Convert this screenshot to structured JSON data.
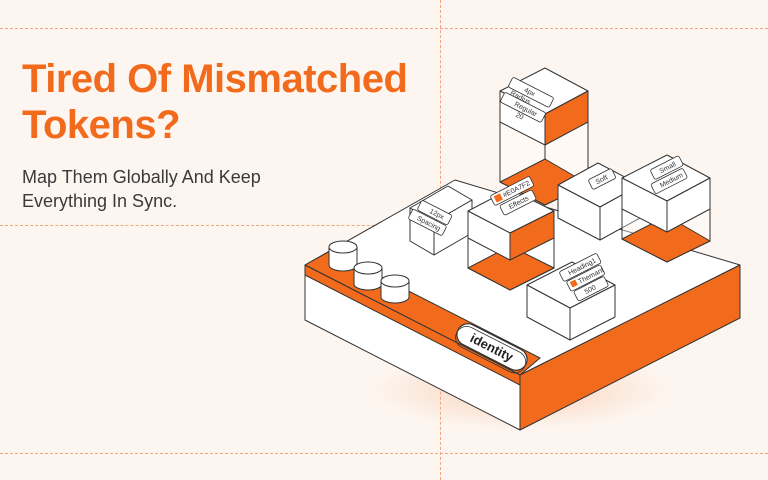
{
  "headline": {
    "line1": "Tired Of Mismatched",
    "line2": "Tokens?"
  },
  "subhead": {
    "line1": "Map Them Globally And Keep",
    "line2": "Everything In Sync."
  },
  "platform": {
    "label": "identity"
  },
  "tokens": {
    "radius": {
      "line1": "4px",
      "line2": "Radius",
      "line3": "Regular",
      "line4": "20"
    },
    "soft": {
      "line1": "Soft"
    },
    "size": {
      "line1": "Small",
      "line2": "Medium"
    },
    "spacing": {
      "line1": "12px",
      "line2": "Spacing"
    },
    "effects": {
      "line1": "#E0A7F2",
      "line2": "Effects"
    },
    "typography": {
      "line1": "Heading1",
      "line2": "Themant",
      "line3": "500"
    }
  },
  "colors": {
    "accent": "#f26b1d",
    "background": "#fdf6f0",
    "ink": "#333333",
    "guide": "#f4a37a"
  }
}
